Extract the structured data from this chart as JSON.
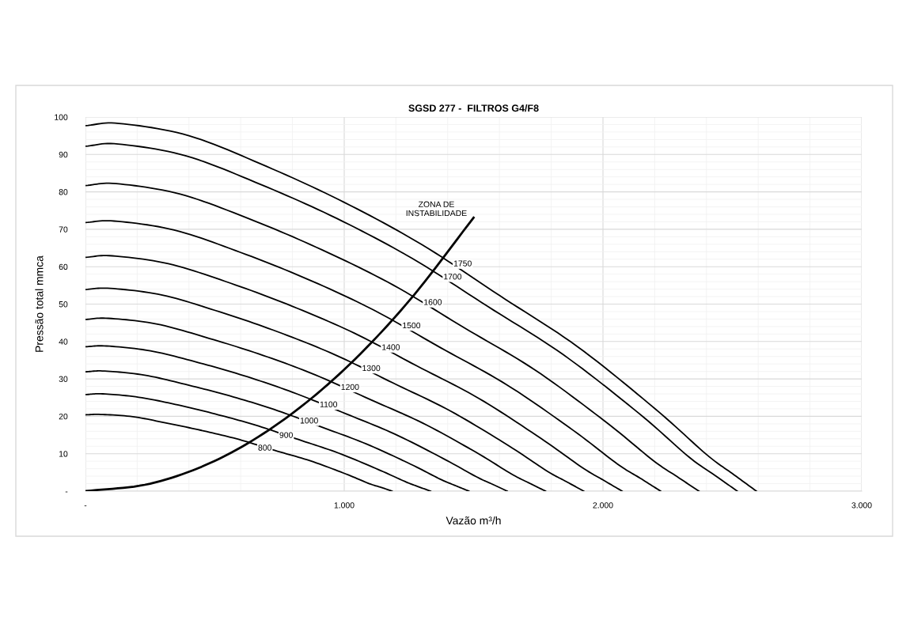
{
  "chart_data": {
    "type": "line",
    "title": "SGSD 277 -  FILTROS G4/F8",
    "xlabel": "Vazão m³/h",
    "ylabel": "Pressão total mmca",
    "xlim": [
      0,
      3000
    ],
    "ylim": [
      0,
      100
    ],
    "xticks": [
      {
        "value": 0,
        "label": "-"
      },
      {
        "value": 1000,
        "label": "1.000"
      },
      {
        "value": 2000,
        "label": "2.000"
      },
      {
        "value": 3000,
        "label": "3.000"
      }
    ],
    "yticks": [
      {
        "value": 0,
        "label": "-"
      },
      10,
      20,
      30,
      40,
      50,
      60,
      70,
      80,
      90,
      100
    ],
    "grid": true,
    "legend": false,
    "marker": "none",
    "line_style": "solid",
    "series": [
      {
        "name": "800",
        "color": "#000000",
        "x": [
          0,
          59,
          183,
          320,
          457,
          594,
          731,
          869,
          1006,
          1097,
          1143,
          1185
        ],
        "values": [
          20.4,
          20.5,
          19.9,
          18.1,
          16.1,
          13.8,
          10.9,
          8.1,
          4.6,
          2.0,
          1.0,
          0
        ]
      },
      {
        "name": "900",
        "color": "#000000",
        "x": [
          0,
          67,
          206,
          360,
          514,
          669,
          823,
          977,
          1131,
          1234,
          1286,
          1334
        ],
        "values": [
          25.8,
          26.0,
          25.1,
          23.0,
          20.4,
          17.4,
          13.8,
          10.2,
          5.8,
          2.6,
          1.2,
          0
        ]
      },
      {
        "name": "1000",
        "color": "#000000",
        "x": [
          0,
          74,
          229,
          400,
          571,
          743,
          914,
          1086,
          1257,
          1371,
          1429,
          1482
        ],
        "values": [
          31.9,
          32.1,
          31.0,
          28.3,
          25.2,
          21.5,
          17.1,
          12.6,
          7.2,
          3.2,
          1.5,
          0
        ]
      },
      {
        "name": "1100",
        "color": "#000000",
        "x": [
          0,
          82,
          251,
          440,
          629,
          817,
          1006,
          1194,
          1383,
          1509,
          1571,
          1630
        ],
        "values": [
          38.6,
          38.8,
          37.5,
          34.3,
          30.5,
          26.0,
          20.7,
          15.3,
          8.7,
          3.9,
          1.9,
          0
        ]
      },
      {
        "name": "1200",
        "color": "#000000",
        "x": [
          0,
          89,
          274,
          480,
          686,
          891,
          1097,
          1303,
          1509,
          1646,
          1714,
          1778
        ],
        "values": [
          45.9,
          46.2,
          44.7,
          40.8,
          36.3,
          31.0,
          24.6,
          18.2,
          10.4,
          4.6,
          2.2,
          0
        ]
      },
      {
        "name": "1300",
        "color": "#000000",
        "x": [
          0,
          97,
          297,
          520,
          743,
          966,
          1189,
          1411,
          1634,
          1783,
          1857,
          1926
        ],
        "values": [
          53.9,
          54.2,
          52.4,
          47.9,
          42.6,
          36.4,
          28.9,
          21.4,
          12.2,
          5.4,
          2.6,
          0
        ]
      },
      {
        "name": "1400",
        "color": "#000000",
        "x": [
          0,
          104,
          320,
          560,
          800,
          1040,
          1280,
          1520,
          1760,
          1920,
          2000,
          2074
        ],
        "values": [
          62.5,
          62.9,
          60.8,
          55.6,
          49.4,
          42.2,
          33.5,
          24.8,
          14.1,
          6.3,
          3.0,
          0
        ]
      },
      {
        "name": "1500",
        "color": "#000000",
        "x": [
          0,
          111,
          343,
          600,
          857,
          1114,
          1371,
          1629,
          1886,
          2057,
          2143,
          2223
        ],
        "values": [
          71.8,
          72.2,
          69.8,
          63.8,
          56.7,
          48.4,
          38.4,
          28.4,
          16.2,
          7.2,
          3.5,
          0
        ]
      },
      {
        "name": "1600",
        "color": "#000000",
        "x": [
          0,
          119,
          366,
          640,
          914,
          1189,
          1463,
          1737,
          2011,
          2194,
          2286,
          2371
        ],
        "values": [
          81.7,
          82.2,
          79.4,
          72.6,
          64.5,
          55.1,
          43.7,
          32.4,
          18.5,
          8.2,
          3.9,
          0
        ]
      },
      {
        "name": "1700",
        "color": "#000000",
        "x": [
          0,
          126,
          389,
          680,
          971,
          1263,
          1554,
          1846,
          2137,
          2331,
          2429,
          2519
        ],
        "values": [
          92.2,
          92.8,
          89.6,
          81.9,
          72.9,
          62.2,
          49.4,
          36.5,
          20.9,
          9.2,
          4.4,
          0
        ]
      },
      {
        "name": "1750",
        "color": "#000000",
        "x": [
          0,
          130,
          400,
          700,
          1000,
          1300,
          1600,
          1900,
          2200,
          2400,
          2500,
          2593
        ],
        "values": [
          97.7,
          98.3,
          95.0,
          86.8,
          77.2,
          65.9,
          52.3,
          38.7,
          22.1,
          9.8,
          4.7,
          0
        ]
      },
      {
        "name": "ZONA DE\nINSTABILIDADE",
        "color": "#000000",
        "x": [
          0,
          250,
          500,
          750,
          1000,
          1250,
          1500
        ],
        "values": [
          0,
          2.0,
          8.1,
          18.3,
          32.5,
          50.8,
          73.1
        ]
      }
    ]
  }
}
